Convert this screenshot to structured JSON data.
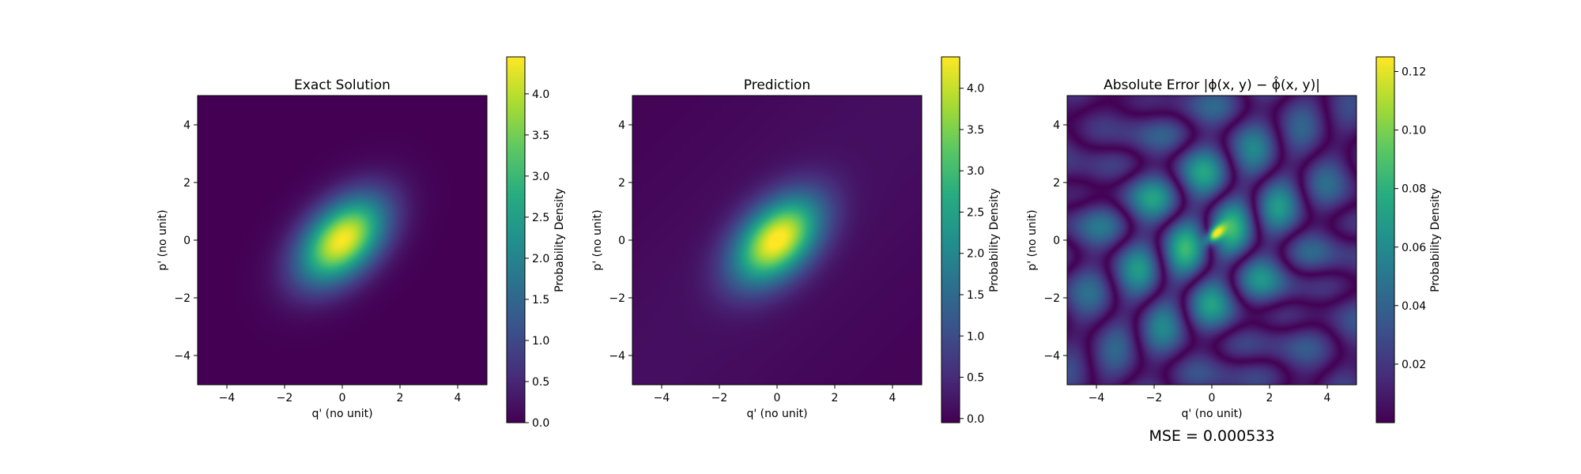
{
  "chart_data": [
    {
      "type": "heatmap",
      "title": "Exact Solution",
      "xlabel": "q' (no unit)",
      "ylabel": "p' (no unit)",
      "xlim": [
        -5,
        5
      ],
      "ylim": [
        -5,
        5
      ],
      "xticks": [
        "−4",
        "−2",
        "0",
        "2",
        "4"
      ],
      "yticks": [
        "−4",
        "−2",
        "0",
        "2",
        "4"
      ],
      "colormap": "viridis",
      "colorbar": {
        "label": "Probability Density",
        "range": [
          0.0,
          4.45
        ],
        "ticks": [
          "0.0",
          "0.5",
          "1.0",
          "1.5",
          "2.0",
          "2.5",
          "3.0",
          "3.5",
          "4.0"
        ],
        "tick_values": [
          0.0,
          0.5,
          1.0,
          1.5,
          2.0,
          2.5,
          3.0,
          3.5,
          4.0
        ]
      },
      "field": {
        "shape": "gaussian",
        "peak": 4.45,
        "peak_at": [
          0,
          0
        ],
        "orientation": "tilted along q' = p'",
        "sigma_major": 1.25,
        "sigma_minor": 0.78
      }
    },
    {
      "type": "heatmap",
      "title": "Prediction",
      "xlabel": "q' (no unit)",
      "ylabel": "p' (no unit)",
      "xlim": [
        -5,
        5
      ],
      "ylim": [
        -5,
        5
      ],
      "xticks": [
        "−4",
        "−2",
        "0",
        "2",
        "4"
      ],
      "yticks": [
        "−4",
        "−2",
        "0",
        "2",
        "4"
      ],
      "colormap": "viridis",
      "colorbar": {
        "label": "Probability Density",
        "range": [
          -0.05,
          4.38
        ],
        "ticks": [
          "0.0",
          "0.5",
          "1.0",
          "1.5",
          "2.0",
          "2.5",
          "3.0",
          "3.5",
          "4.0"
        ],
        "tick_values": [
          0.0,
          0.5,
          1.0,
          1.5,
          2.0,
          2.5,
          3.0,
          3.5,
          4.0
        ]
      },
      "field": {
        "shape": "gaussian",
        "peak": 4.38,
        "peak_at": [
          0,
          0
        ],
        "orientation": "tilted along q' = p'",
        "sigma_major": 1.25,
        "sigma_minor": 0.78,
        "background_level": 0.12
      }
    },
    {
      "type": "heatmap",
      "title": "Absolute Error |ϕ(x, y) − ϕ̂(x, y)|",
      "xlabel": "q' (no unit)",
      "ylabel": "p' (no unit)",
      "xlim": [
        -5,
        5
      ],
      "ylim": [
        -5,
        5
      ],
      "xticks": [
        "−4",
        "−2",
        "0",
        "2",
        "4"
      ],
      "yticks": [
        "−4",
        "−2",
        "0",
        "2",
        "4"
      ],
      "colormap": "viridis",
      "colorbar": {
        "label": "Probability Density",
        "range": [
          0.0,
          0.125
        ],
        "ticks": [
          "0.02",
          "0.04",
          "0.06",
          "0.08",
          "0.10",
          "0.12"
        ],
        "tick_values": [
          0.02,
          0.04,
          0.06,
          0.08,
          0.1,
          0.12
        ]
      },
      "field": {
        "shape": "oscillating error pattern",
        "max": 0.125,
        "max_at": [
          0.1,
          0.2
        ]
      }
    }
  ],
  "annotation": "MSE = 0.000533"
}
